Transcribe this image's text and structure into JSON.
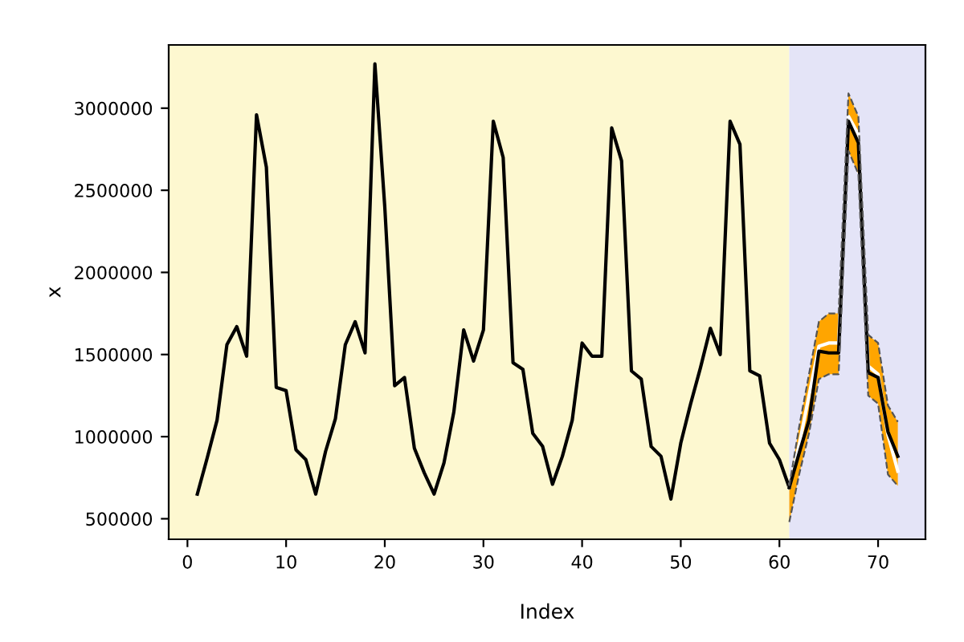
{
  "chart_data": {
    "type": "line",
    "xlabel": "Index",
    "ylabel": "x",
    "xlim": [
      -1.9,
      74.8
    ],
    "ylim": [
      375000,
      3385000
    ],
    "xticks": [
      0,
      10,
      20,
      30,
      40,
      50,
      60,
      70
    ],
    "yticks": [
      500000,
      1000000,
      1500000,
      2000000,
      2500000,
      3000000
    ],
    "grid": false,
    "marker": "none",
    "line_style": "solid",
    "bands": [
      {
        "axis": "x",
        "from": -1.9,
        "to": 61,
        "color": "#fdf8d0"
      },
      {
        "axis": "x",
        "from": 61,
        "to": 74.8,
        "color": "#e4e4f7"
      }
    ],
    "series": [
      {
        "color": "#000000",
        "x": [
          1,
          2,
          3,
          4,
          5,
          6,
          7,
          8,
          9,
          10,
          11,
          12,
          13,
          14,
          15,
          16,
          17,
          18,
          19,
          20,
          21,
          22,
          23,
          24,
          25,
          26,
          27,
          28,
          29,
          30,
          31,
          32,
          33,
          34,
          35,
          36,
          37,
          38,
          39,
          40,
          41,
          42,
          43,
          44,
          45,
          46,
          47,
          48,
          49,
          50,
          51,
          52,
          53,
          54,
          55,
          56,
          57,
          58,
          59,
          60,
          61
        ],
        "values": [
          650000,
          870000,
          1100000,
          1560000,
          1670000,
          1490000,
          2960000,
          2640000,
          1300000,
          1280000,
          920000,
          860000,
          650000,
          910000,
          1110000,
          1560000,
          1700000,
          1510000,
          3270000,
          2400000,
          1310000,
          1360000,
          930000,
          780000,
          650000,
          840000,
          1150000,
          1650000,
          1460000,
          1650000,
          2920000,
          2700000,
          1450000,
          1410000,
          1020000,
          940000,
          710000,
          880000,
          1100000,
          1570000,
          1490000,
          1490000,
          2880000,
          2680000,
          1400000,
          1350000,
          940000,
          880000,
          620000,
          960000,
          1200000,
          1420000,
          1660000,
          1500000,
          2920000,
          2780000,
          1400000,
          1370000,
          960000,
          860000,
          690000
        ]
      },
      {
        "color": "#ffffff",
        "x": [
          61,
          62,
          63,
          64,
          65,
          66,
          67,
          68,
          69,
          70,
          71,
          72
        ],
        "values": [
          690000,
          950000,
          1250000,
          1550000,
          1570000,
          1570000,
          2950000,
          2840000,
          1430000,
          1380000,
          1010000,
          790000
        ]
      },
      {
        "color": "#000000",
        "x": [
          61,
          62,
          63,
          64,
          65,
          66,
          67,
          68,
          69,
          70,
          71,
          72
        ],
        "values": [
          690000,
          900000,
          1100000,
          1520000,
          1510000,
          1510000,
          2920000,
          2790000,
          1390000,
          1360000,
          1030000,
          880000
        ],
        "lower": [
          480000,
          770000,
          1020000,
          1350000,
          1380000,
          1380000,
          2740000,
          2600000,
          1250000,
          1200000,
          770000,
          700000
        ],
        "upper": [
          700000,
          1060000,
          1380000,
          1700000,
          1750000,
          1750000,
          3090000,
          2950000,
          1620000,
          1570000,
          1190000,
          1090000
        ]
      },
      {
        "color": "#555555",
        "line_style": "dashed",
        "x": [
          61,
          62,
          63,
          64,
          65,
          66,
          67,
          68,
          69,
          70,
          71,
          72
        ],
        "values": [
          480000,
          770000,
          1020000,
          1350000,
          1380000,
          1380000,
          2740000,
          2600000,
          1250000,
          1200000,
          770000,
          700000
        ]
      },
      {
        "color": "#555555",
        "line_style": "dashed",
        "x": [
          61,
          62,
          63,
          64,
          65,
          66,
          67,
          68,
          69,
          70,
          71,
          72
        ],
        "values": [
          700000,
          1060000,
          1380000,
          1700000,
          1750000,
          1750000,
          3090000,
          2950000,
          1620000,
          1570000,
          1190000,
          1090000
        ]
      }
    ]
  }
}
